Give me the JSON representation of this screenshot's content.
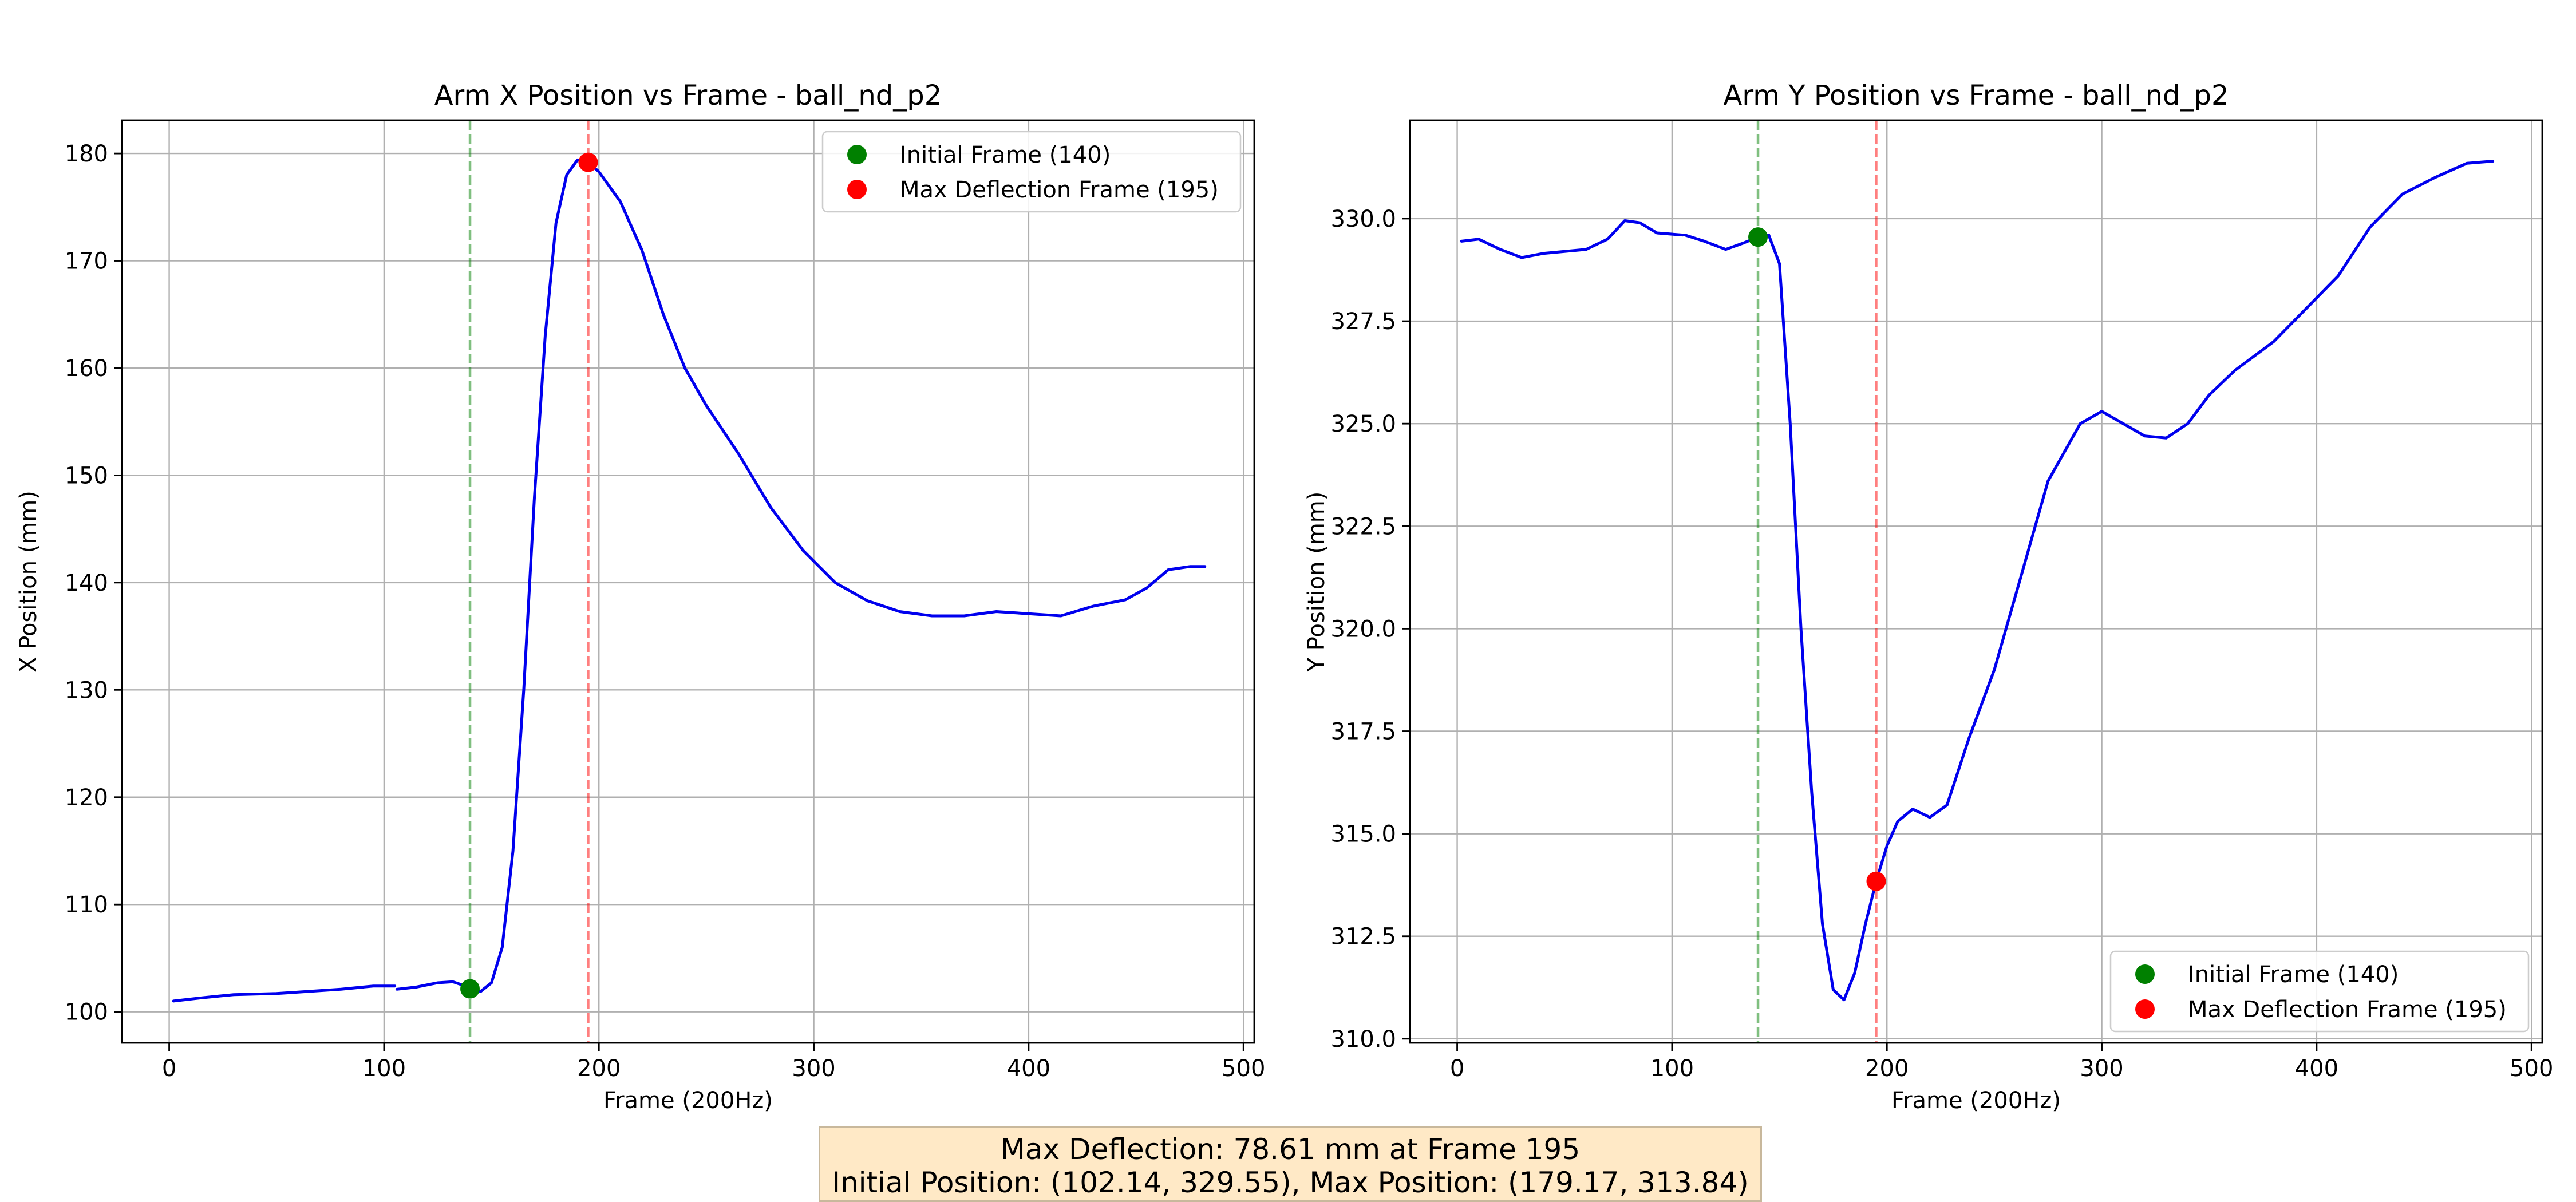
{
  "chart_data": [
    {
      "type": "line",
      "title": "Arm X Position vs Frame - ball_nd_p2",
      "xlabel": "Frame (200Hz)",
      "ylabel": "X Position (mm)",
      "xlim": [
        -22,
        505
      ],
      "ylim": [
        97.1,
        183.1
      ],
      "xticks": [
        0,
        100,
        200,
        300,
        400,
        500
      ],
      "yticks": [
        100,
        110,
        120,
        130,
        140,
        150,
        160,
        170,
        180
      ],
      "ytick_labels": [
        "100",
        "110",
        "120",
        "130",
        "140",
        "150",
        "160",
        "170",
        "180"
      ],
      "grid": true,
      "legend_position": "upper right",
      "line_color": "#0000ee",
      "segments": [
        [
          [
            2,
            101.0
          ],
          [
            15,
            101.3
          ],
          [
            30,
            101.6
          ],
          [
            50,
            101.7
          ],
          [
            65,
            101.9
          ],
          [
            80,
            102.1
          ],
          [
            95,
            102.4
          ],
          [
            105,
            102.4
          ]
        ],
        [
          [
            106,
            102.1
          ],
          [
            115,
            102.3
          ],
          [
            125,
            102.7
          ],
          [
            132,
            102.8
          ],
          [
            138,
            102.4
          ],
          [
            140,
            102.14
          ],
          [
            145,
            101.9
          ],
          [
            150,
            102.7
          ],
          [
            155,
            106.0
          ],
          [
            160,
            115.0
          ],
          [
            165,
            130.0
          ],
          [
            170,
            148.0
          ],
          [
            175,
            163.0
          ],
          [
            180,
            173.5
          ],
          [
            185,
            178.0
          ],
          [
            190,
            179.4
          ],
          [
            195,
            179.17
          ],
          [
            200,
            178.3
          ],
          [
            210,
            175.5
          ],
          [
            220,
            171.0
          ],
          [
            230,
            165.0
          ],
          [
            240,
            160.0
          ],
          [
            250,
            156.5
          ],
          [
            265,
            152.0
          ],
          [
            280,
            147.0
          ],
          [
            295,
            143.0
          ],
          [
            310,
            140.0
          ],
          [
            325,
            138.3
          ],
          [
            340,
            137.3
          ],
          [
            355,
            136.9
          ],
          [
            370,
            136.9
          ],
          [
            385,
            137.3
          ],
          [
            400,
            137.1
          ],
          [
            415,
            136.9
          ],
          [
            430,
            137.8
          ],
          [
            445,
            138.4
          ],
          [
            455,
            139.5
          ],
          [
            465,
            141.2
          ],
          [
            475,
            141.5
          ],
          [
            482,
            141.5
          ]
        ]
      ],
      "initial_frame": {
        "frame": 140,
        "value": 102.14,
        "color": "#008000",
        "label": "Initial Frame (140)"
      },
      "max_frame": {
        "frame": 195,
        "value": 179.17,
        "color": "#ff0000",
        "label": "Max Deflection Frame (195)"
      }
    },
    {
      "type": "line",
      "title": "Arm Y Position vs Frame - ball_nd_p2",
      "xlabel": "Frame (200Hz)",
      "ylabel": "Y Position (mm)",
      "xlim": [
        -22,
        505
      ],
      "ylim": [
        309.9,
        332.4
      ],
      "xticks": [
        0,
        100,
        200,
        300,
        400,
        500
      ],
      "yticks": [
        310.0,
        312.5,
        315.0,
        317.5,
        320.0,
        322.5,
        325.0,
        327.5,
        330.0
      ],
      "ytick_labels": [
        "310.0",
        "312.5",
        "315.0",
        "317.5",
        "320.0",
        "322.5",
        "325.0",
        "327.5",
        "330.0"
      ],
      "grid": true,
      "legend_position": "lower right",
      "line_color": "#0000ee",
      "segments": [
        [
          [
            2,
            329.45
          ],
          [
            10,
            329.5
          ],
          [
            20,
            329.25
          ],
          [
            30,
            329.05
          ],
          [
            40,
            329.15
          ],
          [
            50,
            329.2
          ],
          [
            60,
            329.25
          ],
          [
            70,
            329.5
          ],
          [
            78,
            329.95
          ],
          [
            85,
            329.9
          ],
          [
            93,
            329.65
          ],
          [
            105,
            329.6
          ]
        ],
        [
          [
            106,
            329.6
          ],
          [
            115,
            329.45
          ],
          [
            125,
            329.25
          ],
          [
            133,
            329.4
          ],
          [
            140,
            329.55
          ],
          [
            145,
            329.6
          ],
          [
            150,
            328.9
          ],
          [
            155,
            325.0
          ],
          [
            160,
            320.0
          ],
          [
            165,
            316.0
          ],
          [
            170,
            312.8
          ],
          [
            175,
            311.2
          ],
          [
            180,
            310.95
          ],
          [
            185,
            311.6
          ],
          [
            190,
            312.8
          ],
          [
            195,
            313.84
          ],
          [
            200,
            314.7
          ],
          [
            205,
            315.3
          ],
          [
            212,
            315.6
          ],
          [
            220,
            315.4
          ],
          [
            228,
            315.7
          ],
          [
            238,
            317.3
          ],
          [
            250,
            319.0
          ],
          [
            262,
            321.2
          ],
          [
            275,
            323.6
          ],
          [
            290,
            325.0
          ],
          [
            300,
            325.3
          ],
          [
            310,
            325.0
          ],
          [
            320,
            324.7
          ],
          [
            330,
            324.65
          ],
          [
            340,
            325.0
          ],
          [
            350,
            325.7
          ],
          [
            362,
            326.3
          ],
          [
            380,
            327.0
          ],
          [
            395,
            327.8
          ],
          [
            410,
            328.6
          ],
          [
            425,
            329.8
          ],
          [
            440,
            330.6
          ],
          [
            455,
            331.0
          ],
          [
            470,
            331.35
          ],
          [
            482,
            331.4
          ]
        ]
      ],
      "initial_frame": {
        "frame": 140,
        "value": 329.55,
        "color": "#008000",
        "label": "Initial Frame (140)"
      },
      "max_frame": {
        "frame": 195,
        "value": 313.84,
        "color": "#ff0000",
        "label": "Max Deflection Frame (195)"
      }
    }
  ],
  "summary": {
    "line1": "Max Deflection: 78.61 mm at Frame 195",
    "line2": "Initial Position: (102.14, 329.55), Max Position: (179.17, 313.84)"
  }
}
